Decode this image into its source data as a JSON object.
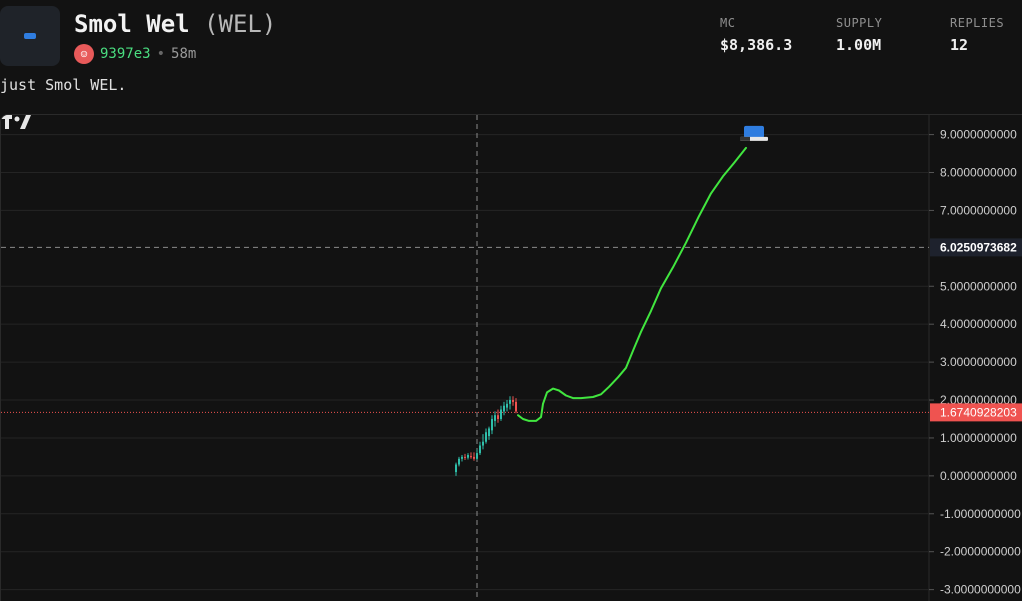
{
  "token": {
    "name": "Smol Wel",
    "ticker": "(WEL)",
    "creator": "9397e3",
    "separator": "•",
    "age": "58m",
    "description": "just Smol WEL."
  },
  "stats": [
    {
      "label": "MC",
      "value": "$8,386.3"
    },
    {
      "label": "SUPPLY",
      "value": "1.00M"
    },
    {
      "label": "REPLIES",
      "value": "12"
    }
  ],
  "chart_data": {
    "type": "line",
    "y_ticks": [
      "9.0000000000",
      "8.0000000000",
      "7.0000000000",
      "5.0000000000",
      "4.0000000000",
      "3.0000000000",
      "2.0000000000",
      "1.0000000000",
      "0.0000000000",
      "-1.0000000000",
      "-2.0000000000",
      "-3.0000000000"
    ],
    "y_tick_values": [
      9,
      8,
      7,
      5,
      4,
      3,
      2,
      1,
      0,
      -1,
      -2,
      -3
    ],
    "ylim": [
      -3.3,
      9.2
    ],
    "crosshair_price": "6.0250973682",
    "crosshair_value": 6.0250973682,
    "last_price": "1.6740928203",
    "last_value": 1.6740928203,
    "candles": [
      {
        "x": 455,
        "o": 0.1,
        "h": 0.35,
        "l": 0.0,
        "c": 0.3
      },
      {
        "x": 458,
        "o": 0.3,
        "h": 0.5,
        "l": 0.25,
        "c": 0.45
      },
      {
        "x": 461,
        "o": 0.45,
        "h": 0.55,
        "l": 0.38,
        "c": 0.5
      },
      {
        "x": 464,
        "o": 0.5,
        "h": 0.58,
        "l": 0.42,
        "c": 0.48
      },
      {
        "x": 467,
        "o": 0.48,
        "h": 0.6,
        "l": 0.43,
        "c": 0.55
      },
      {
        "x": 470,
        "o": 0.52,
        "h": 0.62,
        "l": 0.45,
        "c": 0.5
      },
      {
        "x": 473,
        "o": 0.5,
        "h": 0.62,
        "l": 0.4,
        "c": 0.45
      },
      {
        "x": 476,
        "o": 0.45,
        "h": 0.7,
        "l": 0.42,
        "c": 0.6
      },
      {
        "x": 479,
        "o": 0.6,
        "h": 0.9,
        "l": 0.55,
        "c": 0.8
      },
      {
        "x": 482,
        "o": 0.8,
        "h": 1.1,
        "l": 0.7,
        "c": 0.9
      },
      {
        "x": 485,
        "o": 0.9,
        "h": 1.25,
        "l": 0.85,
        "c": 1.15
      },
      {
        "x": 488,
        "o": 1.05,
        "h": 1.3,
        "l": 0.95,
        "c": 1.25
      },
      {
        "x": 491,
        "o": 1.2,
        "h": 1.6,
        "l": 1.1,
        "c": 1.5
      },
      {
        "x": 494,
        "o": 1.45,
        "h": 1.7,
        "l": 1.3,
        "c": 1.6
      },
      {
        "x": 497,
        "o": 1.6,
        "h": 1.75,
        "l": 1.4,
        "c": 1.5
      },
      {
        "x": 500,
        "o": 1.5,
        "h": 1.85,
        "l": 1.45,
        "c": 1.75
      },
      {
        "x": 503,
        "o": 1.7,
        "h": 1.95,
        "l": 1.6,
        "c": 1.85
      },
      {
        "x": 506,
        "o": 1.8,
        "h": 2.0,
        "l": 1.7,
        "c": 1.9
      },
      {
        "x": 509,
        "o": 1.9,
        "h": 2.1,
        "l": 1.75,
        "c": 2.0
      },
      {
        "x": 512,
        "o": 2.0,
        "h": 2.1,
        "l": 1.85,
        "c": 1.95
      },
      {
        "x": 515,
        "o": 1.95,
        "h": 2.05,
        "l": 1.65,
        "c": 1.7
      }
    ],
    "line": [
      [
        517,
        1.6
      ],
      [
        522,
        1.5
      ],
      [
        528,
        1.45
      ],
      [
        535,
        1.45
      ],
      [
        540,
        1.55
      ],
      [
        542,
        1.9
      ],
      [
        546,
        2.2
      ],
      [
        552,
        2.3
      ],
      [
        558,
        2.25
      ],
      [
        565,
        2.12
      ],
      [
        572,
        2.05
      ],
      [
        580,
        2.05
      ],
      [
        592,
        2.08
      ],
      [
        600,
        2.15
      ],
      [
        608,
        2.35
      ],
      [
        617,
        2.6
      ],
      [
        625,
        2.85
      ],
      [
        632,
        3.3
      ],
      [
        640,
        3.8
      ],
      [
        650,
        4.35
      ],
      [
        660,
        4.95
      ],
      [
        672,
        5.5
      ],
      [
        685,
        6.15
      ],
      [
        698,
        6.85
      ],
      [
        710,
        7.45
      ],
      [
        722,
        7.9
      ],
      [
        733,
        8.25
      ],
      [
        745,
        8.65
      ]
    ]
  },
  "colors": {
    "background": "#121212",
    "grid": "#242424",
    "up": "#2fbfaa",
    "down": "#ef5350",
    "line": "#41e63f",
    "last_price": "#ef5350",
    "crosshair_label": "#1e222d",
    "creator": "#4ade80"
  }
}
